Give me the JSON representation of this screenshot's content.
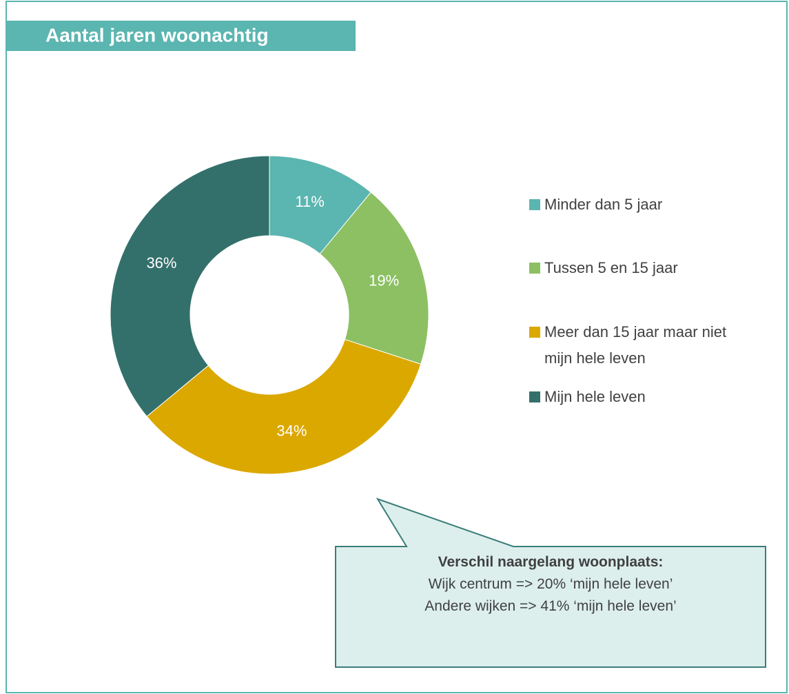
{
  "chart_data": {
    "type": "donut",
    "title": "Aantal jaren woonachtig",
    "categories": [
      "Minder dan 5 jaar",
      "Tussen 5 en 15 jaar",
      "Meer dan 15 jaar maar niet mijn hele leven",
      "Mijn hele leven"
    ],
    "values": [
      11,
      19,
      34,
      36
    ],
    "value_labels": [
      "11%",
      "19%",
      "34%",
      "36%"
    ],
    "colors": [
      "#5bb5b0",
      "#8cc063",
      "#dba800",
      "#33706b"
    ],
    "legend": "right",
    "annotation": {
      "title": "Verschil naargelang woonplaats:",
      "lines": [
        "Wijk centrum => 20% ‘mijn hele leven’",
        "Andere wijken => 41% ‘mijn hele leven’"
      ]
    }
  }
}
